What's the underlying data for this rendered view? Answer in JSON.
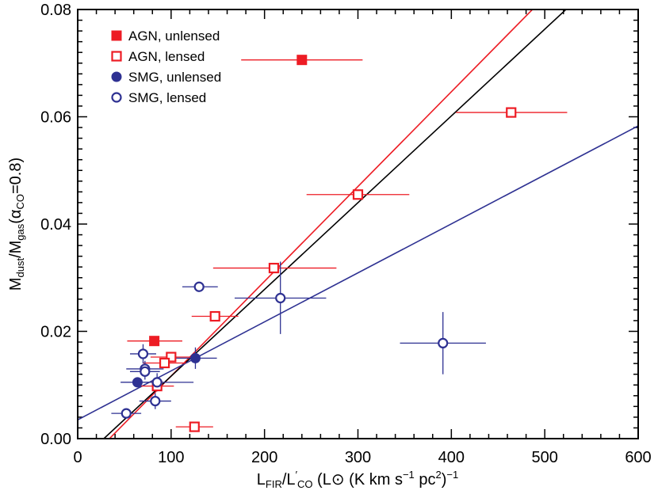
{
  "chart_data": {
    "type": "scatter",
    "xlabel": {
      "main": "L",
      "sub": "FIR",
      "slash": "/L",
      "prime": "′",
      "sub2": "CO",
      "rest": " (L",
      "sun": "⊙",
      "rest2": " (K km s",
      "exp1": "−1",
      "rest3": " pc",
      "exp2": "2",
      "rest4": ")",
      "exp3": "−1"
    },
    "ylabel": {
      "m1": "M",
      "sub1": "dust",
      "slash": "/M",
      "sub2": "gas",
      "paren": "(α",
      "sub3": "CO",
      "tail": "=0.8)"
    },
    "xlim": [
      0,
      600
    ],
    "ylim": [
      0,
      0.08
    ],
    "xticks": [
      "0",
      "100",
      "200",
      "300",
      "400",
      "500",
      "600"
    ],
    "yticks": [
      "0.00",
      "0.02",
      "0.04",
      "0.06",
      "0.08"
    ],
    "legend_position": "top-left",
    "series": [
      {
        "name": "AGN, unlensed",
        "marker": "filled-square",
        "color": "#ed1c24",
        "points": [
          {
            "x": 240,
            "y": 0.0706,
            "xerr": [
              175,
              305
            ],
            "yerr": null
          },
          {
            "x": 82,
            "y": 0.0182,
            "xerr": [
              53,
              112
            ],
            "yerr": null
          }
        ]
      },
      {
        "name": "AGN, lensed",
        "marker": "open-square",
        "color": "#ed1c24",
        "points": [
          {
            "x": 464,
            "y": 0.0608,
            "xerr": [
              405,
              524
            ],
            "yerr": null
          },
          {
            "x": 300,
            "y": 0.0455,
            "xerr": [
              245,
              355
            ],
            "yerr": null
          },
          {
            "x": 210,
            "y": 0.0318,
            "xerr": [
              145,
              277
            ],
            "yerr": null
          },
          {
            "x": 147,
            "y": 0.0228,
            "xerr": [
              122,
              172
            ],
            "yerr": null
          },
          {
            "x": 100,
            "y": 0.0152,
            "xerr": [
              78,
              122
            ],
            "yerr": null
          },
          {
            "x": 93,
            "y": 0.0141,
            "xerr": [
              70,
              116
            ],
            "yerr": null
          },
          {
            "x": 85,
            "y": 0.0098,
            "xerr": [
              68,
              103
            ],
            "yerr": null
          },
          {
            "x": 125,
            "y": 0.0022,
            "xerr": [
              105,
              145
            ],
            "yerr": null
          }
        ]
      },
      {
        "name": "SMG, unlensed",
        "marker": "filled-circle",
        "color": "#2e3192",
        "points": [
          {
            "x": 126,
            "y": 0.015,
            "xerr": [
              103,
              149
            ],
            "yerr": [
              0.013,
              0.017
            ]
          },
          {
            "x": 64,
            "y": 0.0105,
            "xerr": [
              46,
              82
            ],
            "yerr": null
          }
        ]
      },
      {
        "name": "SMG, lensed",
        "marker": "open-circle",
        "color": "#2e3192",
        "points": [
          {
            "x": 130,
            "y": 0.0283,
            "xerr": [
              112,
              150
            ],
            "yerr": null
          },
          {
            "x": 217,
            "y": 0.0262,
            "xerr": [
              168,
              266
            ],
            "yerr": [
              0.0195,
              0.033
            ]
          },
          {
            "x": 391,
            "y": 0.0178,
            "xerr": [
              345,
              437
            ],
            "yerr": [
              0.012,
              0.0236
            ]
          },
          {
            "x": 70,
            "y": 0.0158,
            "xerr": [
              56,
              84
            ],
            "yerr": [
              0.014,
              0.0176
            ]
          },
          {
            "x": 72,
            "y": 0.013,
            "xerr": [
              52,
              92
            ],
            "yerr": [
              0.0115,
              0.0145
            ]
          },
          {
            "x": 72,
            "y": 0.0125,
            "xerr": [
              56,
              88
            ],
            "yerr": [
              0.011,
              0.014
            ]
          },
          {
            "x": 85,
            "y": 0.0105,
            "xerr": [
              46,
              124
            ],
            "yerr": [
              0.0088,
              0.0122
            ]
          },
          {
            "x": 83,
            "y": 0.007,
            "xerr": [
              66,
              100
            ],
            "yerr": [
              0.0055,
              0.0085
            ]
          },
          {
            "x": 52,
            "y": 0.0047,
            "xerr": [
              36,
              68
            ],
            "yerr": null
          }
        ]
      }
    ],
    "fit_lines": [
      {
        "color": "#ed1c24",
        "x0": 34,
        "y0": 0,
        "x1": 600,
        "y1": 0.1
      },
      {
        "color": "#000000",
        "x0": 28,
        "y0": 0,
        "x1": 600,
        "y1": 0.0925
      },
      {
        "color": "#2e3192",
        "x0": 0,
        "y0": 0.0035,
        "x1": 600,
        "y1": 0.0583
      }
    ]
  }
}
